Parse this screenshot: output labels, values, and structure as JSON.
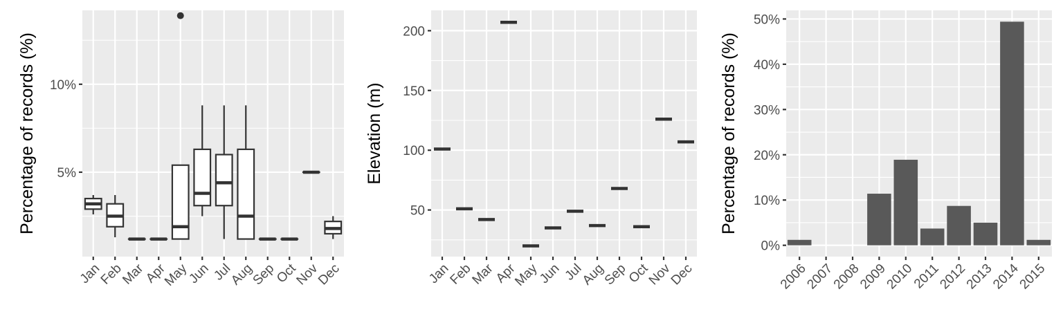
{
  "chart_data": [
    {
      "type": "box",
      "ylabel": "Percentage of records (%)",
      "categories": [
        "Jan",
        "Feb",
        "Mar",
        "Apr",
        "May",
        "Jun",
        "Jul",
        "Aug",
        "Sep",
        "Oct",
        "Nov",
        "Dec"
      ],
      "ylim": [
        0.2,
        14.2
      ],
      "yticks": [
        5,
        10
      ],
      "ytick_labels": [
        "5%",
        "10%"
      ],
      "boxes": [
        {
          "min": 2.6,
          "q1": 2.9,
          "median": 3.2,
          "q3": 3.5,
          "max": 3.7
        },
        {
          "min": 1.3,
          "q1": 1.9,
          "median": 2.5,
          "q3": 3.2,
          "max": 3.7
        },
        {
          "min": 1.2,
          "q1": 1.2,
          "median": 1.2,
          "q3": 1.2,
          "max": 1.2
        },
        {
          "min": 1.2,
          "q1": 1.2,
          "median": 1.2,
          "q3": 1.2,
          "max": 1.2
        },
        {
          "min": 1.2,
          "q1": 1.2,
          "median": 1.9,
          "q3": 5.4,
          "max": 5.4
        },
        {
          "min": 2.5,
          "q1": 3.1,
          "median": 3.8,
          "q3": 6.3,
          "max": 8.8
        },
        {
          "min": 1.2,
          "q1": 3.1,
          "median": 4.4,
          "q3": 6.0,
          "max": 8.8
        },
        {
          "min": 1.2,
          "q1": 1.2,
          "median": 2.5,
          "q3": 6.3,
          "max": 8.8
        },
        {
          "min": 1.2,
          "q1": 1.2,
          "median": 1.2,
          "q3": 1.2,
          "max": 1.2
        },
        {
          "min": 1.2,
          "q1": 1.2,
          "median": 1.2,
          "q3": 1.2,
          "max": 1.2
        },
        {
          "min": 5.0,
          "q1": 5.0,
          "median": 5.0,
          "q3": 5.0,
          "max": 5.0
        },
        {
          "min": 1.2,
          "q1": 1.5,
          "median": 1.8,
          "q3": 2.2,
          "max": 2.5
        }
      ],
      "outliers": [
        {
          "category": "May",
          "value": 13.9
        }
      ],
      "grid": true
    },
    {
      "type": "crossbar",
      "ylabel": "Elevation (m)",
      "categories": [
        "Jan",
        "Feb",
        "Mar",
        "Apr",
        "May",
        "Jun",
        "Jul",
        "Aug",
        "Sep",
        "Oct",
        "Nov",
        "Dec"
      ],
      "values": [
        101,
        51,
        42,
        207,
        20,
        35,
        49,
        37,
        68,
        36,
        126,
        107
      ],
      "ylim": [
        11,
        217
      ],
      "yticks": [
        50,
        100,
        150,
        200
      ],
      "ytick_labels": [
        "50",
        "100",
        "150",
        "200"
      ],
      "grid": true
    },
    {
      "type": "bar",
      "ylabel": "Percentage of records (%)",
      "categories": [
        "2006",
        "2007",
        "2008",
        "2009",
        "2010",
        "2011",
        "2012",
        "2013",
        "2014",
        "2015"
      ],
      "values": [
        1.2,
        0,
        0,
        11.4,
        18.9,
        3.7,
        8.7,
        5.0,
        49.4,
        1.2
      ],
      "ylim": [
        -2.5,
        51.9
      ],
      "yticks": [
        0,
        10,
        20,
        30,
        40,
        50
      ],
      "ytick_labels": [
        "0%",
        "10%",
        "20%",
        "30%",
        "40%",
        "50%"
      ],
      "grid": true
    }
  ]
}
